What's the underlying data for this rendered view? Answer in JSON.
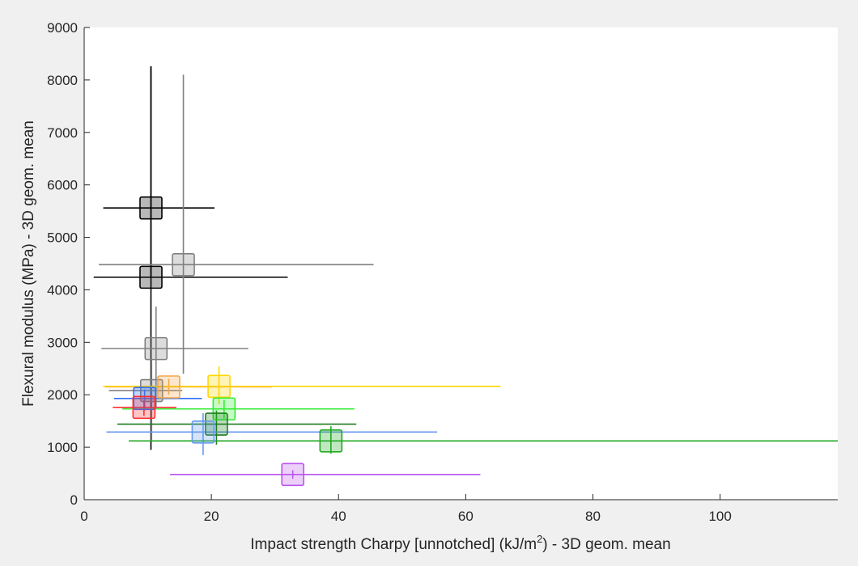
{
  "chart_data": {
    "type": "scatter",
    "xlabel": {
      "text": "Impact strength Charpy [unnotched] (kJ/m",
      "superscript": "2",
      "suffix": ") - 3D geom. mean"
    },
    "ylabel": "Flexural modulus (MPa) - 3D geom. mean",
    "xlim": [
      0,
      118.5
    ],
    "ylim": [
      0,
      9000
    ],
    "xticks": [
      0,
      20,
      40,
      60,
      80,
      100
    ],
    "yticks": [
      0,
      1000,
      2000,
      3000,
      4000,
      5000,
      6000,
      7000,
      8000,
      9000
    ],
    "grid": false,
    "legend": "none",
    "points": [
      {
        "x": 10.5,
        "y": 5560,
        "x_err": [
          3.0,
          20.5
        ],
        "y_err": [
          4250,
          8260
        ],
        "color": "#000000"
      },
      {
        "x": 10.5,
        "y": 4240,
        "x_err": [
          1.5,
          32.0
        ],
        "y_err": [
          950,
          8260
        ],
        "color": "#000000"
      },
      {
        "x": 15.6,
        "y": 4480,
        "x_err": [
          2.3,
          45.5
        ],
        "y_err": [
          2400,
          8100
        ],
        "color": "#808080"
      },
      {
        "x": 11.3,
        "y": 2880,
        "x_err": [
          2.7,
          25.8
        ],
        "y_err": [
          1750,
          3680
        ],
        "color": "#808080"
      },
      {
        "x": 10.6,
        "y": 2080,
        "x_err": [
          3.9,
          15.4
        ],
        "y_err": [
          1100,
          2650
        ],
        "color": "#808080"
      },
      {
        "x": 13.3,
        "y": 2150,
        "x_err": [
          3.3,
          29.5
        ],
        "y_err": [
          2000,
          2300
        ],
        "color": "#f5a54a"
      },
      {
        "x": 21.2,
        "y": 2160,
        "x_err": [
          3.0,
          65.5
        ],
        "y_err": [
          1820,
          2540
        ],
        "color": "#ffd700"
      },
      {
        "x": 9.5,
        "y": 1930,
        "x_err": [
          4.7,
          18.5
        ],
        "y_err": [
          1700,
          2100
        ],
        "color": "#2f6fff"
      },
      {
        "x": 9.4,
        "y": 1760,
        "x_err": [
          4.5,
          14.5
        ],
        "y_err": [
          1600,
          1900
        ],
        "color": "#ff3030"
      },
      {
        "x": 22.0,
        "y": 1730,
        "x_err": [
          6.0,
          42.5
        ],
        "y_err": [
          1550,
          1900
        ],
        "color": "#33ee33"
      },
      {
        "x": 20.8,
        "y": 1440,
        "x_err": [
          5.2,
          42.8
        ],
        "y_err": [
          1050,
          1700
        ],
        "color": "#1e7d1e"
      },
      {
        "x": 18.7,
        "y": 1290,
        "x_err": [
          3.5,
          55.5
        ],
        "y_err": [
          850,
          1650
        ],
        "color": "#6699ee"
      },
      {
        "x": 38.8,
        "y": 1120,
        "x_err": [
          7.0,
          118.5
        ],
        "y_err": [
          880,
          1400
        ],
        "color": "#22aa22"
      },
      {
        "x": 32.8,
        "y": 480,
        "x_err": [
          13.5,
          62.3
        ],
        "y_err": [
          400,
          560
        ],
        "color": "#bb55ee"
      }
    ]
  }
}
